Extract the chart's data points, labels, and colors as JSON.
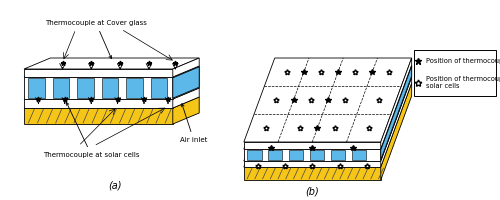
{
  "fig_width": 5.0,
  "fig_height": 2.0,
  "dpi": 100,
  "background": "#ffffff",
  "blue_color": "#5bb8e8",
  "yellow_color": "#f5c518",
  "label_a": "(a)",
  "label_b": "(b)",
  "text_cover": "Thermocouple at Cover glass",
  "text_solar": "Thermocouple at solar cells",
  "text_air": "Air inlet",
  "legend_glass": "Position of thermocouple at glass",
  "legend_solar": "Position of thermocouple at\nsolar cells",
  "shear_a": 1.1,
  "shear_b": 1.4
}
